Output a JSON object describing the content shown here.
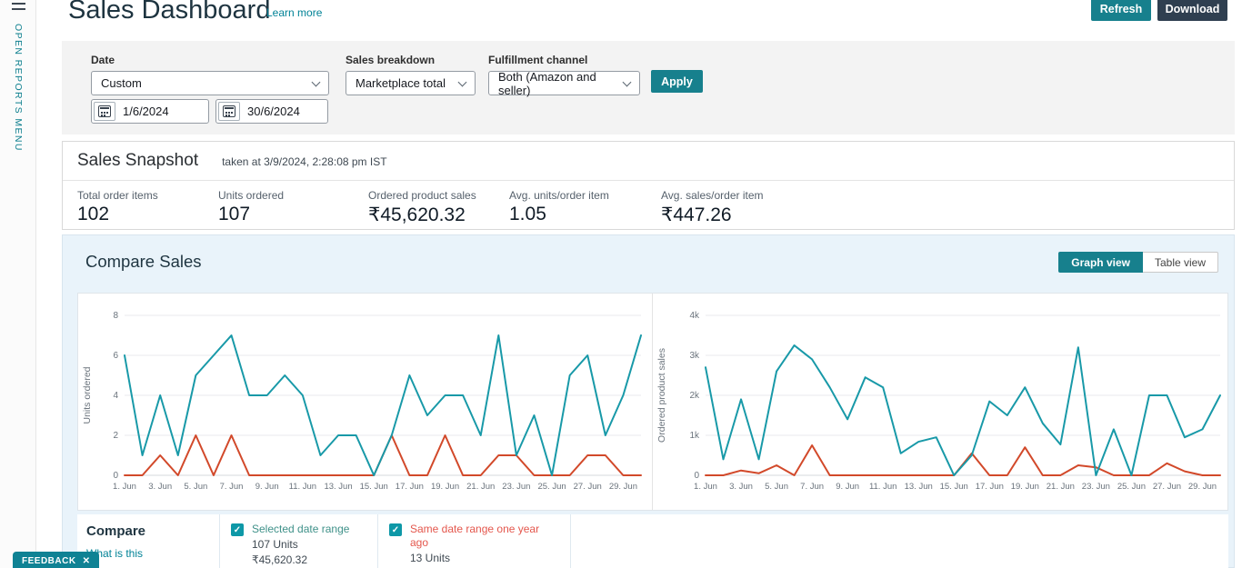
{
  "sidebar": {
    "menu_label": "OPEN REPORTS MENU"
  },
  "header": {
    "title": "Sales Dashboard",
    "learn_more": "Learn more",
    "refresh_label": "Refresh",
    "download_label": "Download"
  },
  "filters": {
    "date_label": "Date",
    "date_value": "Custom",
    "date_from": "1/6/2024",
    "date_to": "30/6/2024",
    "sales_breakdown_label": "Sales breakdown",
    "sales_breakdown_value": "Marketplace total",
    "fulfillment_label": "Fulfillment channel",
    "fulfillment_value": "Both (Amazon and seller)",
    "apply_label": "Apply"
  },
  "snapshot": {
    "title": "Sales Snapshot",
    "taken_at": "taken at 3/9/2024, 2:28:08 pm IST",
    "metrics": [
      {
        "label": "Total order items",
        "value": "102"
      },
      {
        "label": "Units ordered",
        "value": "107"
      },
      {
        "label": "Ordered product sales",
        "value": "₹45,620.32"
      },
      {
        "label": "Avg. units/order item",
        "value": "1.05"
      },
      {
        "label": "Avg. sales/order item",
        "value": "₹447.26"
      }
    ]
  },
  "compare_sales": {
    "title": "Compare Sales",
    "graph_view_label": "Graph view",
    "table_view_label": "Table view",
    "legend": {
      "compare_label": "Compare",
      "what_is_this": "What is this",
      "series1": {
        "label": "Selected date range",
        "units": "107 Units",
        "sales": "₹45,620.32",
        "check": "✓"
      },
      "series2": {
        "label": "Same date range one year ago",
        "units": "13 Units",
        "check": "✓"
      }
    }
  },
  "feedback": {
    "label": "FEEDBACK",
    "close": "✕"
  },
  "colors": {
    "accent_teal": "#17808d",
    "dark_button": "#2f3f50",
    "section_blue": "#e9f3fa",
    "line_teal": "#1899a8",
    "line_red": "#d2492a",
    "checkbox_teal": "#0e98a7",
    "link_teal": "#008296"
  },
  "chart_data": [
    {
      "type": "line",
      "title": "",
      "xlabel": "",
      "ylabel": "Units ordered",
      "x": [
        1,
        2,
        3,
        4,
        5,
        6,
        7,
        8,
        9,
        10,
        11,
        12,
        13,
        14,
        15,
        16,
        17,
        18,
        19,
        20,
        21,
        22,
        23,
        24,
        25,
        26,
        27,
        28,
        29,
        30
      ],
      "x_tick_labels": [
        "1. Jun",
        "3. Jun",
        "5. Jun",
        "7. Jun",
        "9. Jun",
        "11. Jun",
        "13. Jun",
        "15. Jun",
        "17. Jun",
        "19. Jun",
        "21. Jun",
        "23. Jun",
        "25. Jun",
        "27. Jun",
        "29. Jun"
      ],
      "ylim": [
        0,
        8
      ],
      "y_ticks": [
        0,
        2,
        4,
        6,
        8
      ],
      "y_tick_labels": [
        "0",
        "2",
        "4",
        "6",
        "8"
      ],
      "grid": true,
      "legend_position": "none",
      "series": [
        {
          "name": "Selected date range",
          "color": "#1899a8",
          "values": [
            6,
            1,
            4,
            1,
            5,
            6,
            7,
            4,
            4,
            5,
            4,
            1,
            2,
            2,
            0,
            2,
            5,
            3,
            4,
            4,
            2,
            7,
            1,
            3,
            0,
            5,
            6,
            2,
            4,
            7
          ]
        },
        {
          "name": "Same date range one year ago",
          "color": "#d2492a",
          "values": [
            0,
            0,
            1,
            0,
            2,
            0,
            2,
            0,
            0,
            0,
            0,
            0,
            0,
            0,
            0,
            2,
            0,
            0,
            2,
            0,
            0,
            1,
            1,
            0,
            0,
            0,
            1,
            1,
            0,
            0
          ]
        }
      ]
    },
    {
      "type": "line",
      "title": "",
      "xlabel": "",
      "ylabel": "Ordered product sales",
      "x": [
        1,
        2,
        3,
        4,
        5,
        6,
        7,
        8,
        9,
        10,
        11,
        12,
        13,
        14,
        15,
        16,
        17,
        18,
        19,
        20,
        21,
        22,
        23,
        24,
        25,
        26,
        27,
        28,
        29,
        30
      ],
      "x_tick_labels": [
        "1. Jun",
        "3. Jun",
        "5. Jun",
        "7. Jun",
        "9. Jun",
        "11. Jun",
        "13. Jun",
        "15. Jun",
        "17. Jun",
        "19. Jun",
        "21. Jun",
        "23. Jun",
        "25. Jun",
        "27. Jun",
        "29. Jun"
      ],
      "ylim": [
        0,
        4000
      ],
      "y_ticks": [
        0,
        1000,
        2000,
        3000,
        4000
      ],
      "y_tick_labels": [
        "0",
        "1k",
        "2k",
        "3k",
        "4k"
      ],
      "grid": true,
      "legend_position": "none",
      "series": [
        {
          "name": "Selected date range",
          "color": "#1899a8",
          "values": [
            2700,
            400,
            1900,
            400,
            2600,
            3250,
            2900,
            2200,
            1400,
            2450,
            2200,
            550,
            840,
            950,
            0,
            500,
            1850,
            1500,
            2200,
            1300,
            770,
            3200,
            0,
            1150,
            0,
            2000,
            2000,
            950,
            1150,
            2000
          ]
        },
        {
          "name": "Same date range one year ago",
          "color": "#d2492a",
          "values": [
            0,
            0,
            120,
            50,
            250,
            0,
            750,
            0,
            0,
            0,
            0,
            0,
            0,
            0,
            0,
            550,
            0,
            0,
            700,
            0,
            0,
            250,
            200,
            0,
            0,
            0,
            300,
            100,
            0,
            0
          ]
        }
      ]
    }
  ]
}
